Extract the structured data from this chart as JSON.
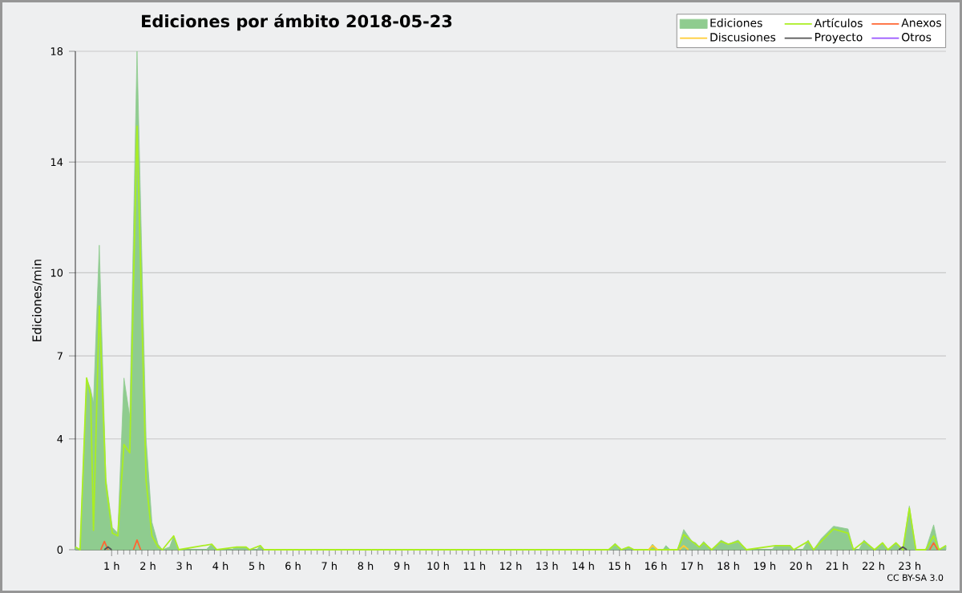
{
  "chart_data": {
    "type": "line",
    "title": "Ediciones por ámbito  2018-05-23",
    "ylabel": "Ediciones/min",
    "annotations": [
      "CC BY-SA 3.0"
    ],
    "xlim": [
      0,
      24
    ],
    "xticks": [
      {
        "value": 1,
        "label": "1 h"
      },
      {
        "value": 2,
        "label": "2 h"
      },
      {
        "value": 3,
        "label": "3 h"
      },
      {
        "value": 4,
        "label": "4 h"
      },
      {
        "value": 5,
        "label": "5 h"
      },
      {
        "value": 6,
        "label": "6 h"
      },
      {
        "value": 7,
        "label": "7 h"
      },
      {
        "value": 8,
        "label": "8 h"
      },
      {
        "value": 9,
        "label": "9 h"
      },
      {
        "value": 10,
        "label": "10 h"
      },
      {
        "value": 11,
        "label": "11 h"
      },
      {
        "value": 12,
        "label": "12 h"
      },
      {
        "value": 13,
        "label": "13 h"
      },
      {
        "value": 14,
        "label": "14 h"
      },
      {
        "value": 15,
        "label": "15 h"
      },
      {
        "value": 16,
        "label": "16 h"
      },
      {
        "value": 17,
        "label": "17 h"
      },
      {
        "value": 18,
        "label": "18 h"
      },
      {
        "value": 19,
        "label": "19 h"
      },
      {
        "value": 20,
        "label": "20 h"
      },
      {
        "value": 21,
        "label": "21 h"
      },
      {
        "value": 22,
        "label": "22 h"
      },
      {
        "value": 23,
        "label": "23 h"
      }
    ],
    "ylim": [
      0,
      18
    ],
    "yticks": [
      0,
      4,
      7,
      10,
      14,
      18
    ],
    "grid": "y",
    "legend": "top right",
    "series": [
      {
        "name": "Ediciones",
        "type": "area",
        "color": "#8fcc8f",
        "x": [
          0,
          0.13,
          0.31,
          0.42,
          0.5,
          0.66,
          0.84,
          1.02,
          1.17,
          1.34,
          1.5,
          1.7,
          1.95,
          2.11,
          2.28,
          2.4,
          2.6,
          2.71,
          2.85,
          3.6,
          3.76,
          3.9,
          4.3,
          4.45,
          4.7,
          4.8,
          5.0,
          5.1,
          5.2,
          14.7,
          14.88,
          15.05,
          15.25,
          15.4,
          15.8,
          15.91,
          16.05,
          16.2,
          16.28,
          16.4,
          16.6,
          16.77,
          17.0,
          17.1,
          17.2,
          17.32,
          17.54,
          17.8,
          18.0,
          18.27,
          18.5,
          19.2,
          19.3,
          19.7,
          19.8,
          20.05,
          20.2,
          20.35,
          20.56,
          20.9,
          21.3,
          21.45,
          21.6,
          21.74,
          22.03,
          22.25,
          22.4,
          22.62,
          22.81,
          22.99,
          23.17,
          23.44,
          23.66,
          23.81,
          24
        ],
        "values": [
          0.1,
          0,
          6.2,
          5.8,
          5.3,
          11,
          2.6,
          0.8,
          0.6,
          6.2,
          4.8,
          18,
          4,
          1,
          0.2,
          0,
          0.1,
          0.5,
          0,
          0,
          0.2,
          0,
          0,
          0.1,
          0.1,
          0,
          0,
          0.15,
          0,
          0,
          0.23,
          0,
          0.1,
          0,
          0,
          0.2,
          0,
          0,
          0.15,
          0,
          0,
          0.73,
          0.3,
          0.25,
          0.1,
          0.3,
          0,
          0.35,
          0.2,
          0.35,
          0,
          0,
          0.15,
          0.15,
          0,
          0,
          0.35,
          0,
          0.4,
          0.85,
          0.75,
          0,
          0,
          0.35,
          0,
          0.25,
          0,
          0.25,
          0,
          1.58,
          0,
          0,
          0.9,
          0,
          0.15
        ]
      },
      {
        "name": "Artículos",
        "color": "#aaee22",
        "x": [
          0,
          0.13,
          0.31,
          0.42,
          0.5,
          0.66,
          0.84,
          1.02,
          1.17,
          1.34,
          1.5,
          1.7,
          1.95,
          2.11,
          2.28,
          2.4,
          2.71,
          2.85,
          3.76,
          3.9,
          4.45,
          4.7,
          4.8,
          5.1,
          5.2,
          14.7,
          14.88,
          15.05,
          15.25,
          15.4,
          16.6,
          16.77,
          17.0,
          17.2,
          17.32,
          17.54,
          17.8,
          18.0,
          18.27,
          18.5,
          19.3,
          19.7,
          19.8,
          20.2,
          20.35,
          20.56,
          20.9,
          21.3,
          21.45,
          21.74,
          22.03,
          22.25,
          22.4,
          22.62,
          22.81,
          22.99,
          23.17,
          23.44,
          23.66,
          23.81,
          24
        ],
        "values": [
          0.1,
          0,
          6.2,
          5.6,
          0.7,
          8.8,
          2.4,
          0.6,
          0.5,
          3.8,
          3.5,
          15.3,
          2.5,
          0.5,
          0.1,
          0,
          0.5,
          0,
          0.2,
          0,
          0.1,
          0.1,
          0,
          0.15,
          0,
          0,
          0.2,
          0,
          0.1,
          0,
          0,
          0.55,
          0.3,
          0.1,
          0.25,
          0,
          0.3,
          0.2,
          0.3,
          0,
          0.15,
          0.15,
          0,
          0.3,
          0,
          0.3,
          0.75,
          0.6,
          0,
          0.3,
          0,
          0.25,
          0,
          0.25,
          0,
          1.5,
          0,
          0,
          0.5,
          0,
          0.15
        ]
      },
      {
        "name": "Anexos",
        "color": "#ff6633",
        "x": [
          0.7,
          0.8,
          0.9,
          1.2,
          1.6,
          1.7,
          1.8,
          10,
          23.55,
          23.66,
          23.77
        ],
        "values": [
          0,
          0.3,
          0,
          null,
          0,
          0.35,
          0,
          null,
          0,
          0.25,
          0
        ]
      },
      {
        "name": "Discusiones",
        "color": "#ffcc33",
        "x": [
          15.8,
          15.91,
          16.05,
          16.3,
          16.65,
          16.77,
          16.9
        ],
        "values": [
          0,
          0.15,
          0,
          null,
          0,
          0.15,
          0
        ]
      },
      {
        "name": "Proyecto",
        "color": "#555555",
        "x": [
          0.8,
          0.9,
          1.0,
          10,
          22.7,
          22.81,
          22.92
        ],
        "values": [
          0,
          0.1,
          0,
          null,
          0,
          0.1,
          0
        ]
      },
      {
        "name": "Otros",
        "color": "#9955ff"
      }
    ]
  }
}
